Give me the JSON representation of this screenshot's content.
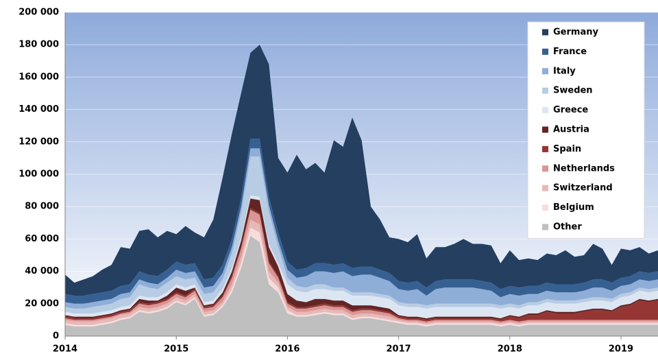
{
  "chart_data": {
    "type": "stacked_area",
    "x": [
      2014,
      2014.083,
      2014.167,
      2014.25,
      2014.333,
      2014.417,
      2014.5,
      2014.583,
      2014.667,
      2014.75,
      2014.833,
      2014.917,
      2015,
      2015.083,
      2015.167,
      2015.25,
      2015.333,
      2015.417,
      2015.5,
      2015.583,
      2015.667,
      2015.75,
      2015.833,
      2015.917,
      2016,
      2016.083,
      2016.167,
      2016.25,
      2016.333,
      2016.417,
      2016.5,
      2016.583,
      2016.667,
      2016.75,
      2016.833,
      2016.917,
      2017,
      2017.083,
      2017.167,
      2017.25,
      2017.333,
      2017.417,
      2017.5,
      2017.583,
      2017.667,
      2017.75,
      2017.833,
      2017.917,
      2018,
      2018.083,
      2018.167,
      2018.25,
      2018.333,
      2018.417,
      2018.5,
      2018.583,
      2018.667,
      2018.75,
      2018.833,
      2018.917,
      2019,
      2019.083,
      2019.167,
      2019.25,
      2019.333
    ],
    "xlim": [
      2014,
      2019.333
    ],
    "xticks": [
      2014,
      2015,
      2016,
      2017,
      2018,
      2019
    ],
    "ylim": [
      0,
      200000
    ],
    "yticks": [
      0,
      {
        "value": 20000,
        "label": "20 000"
      },
      {
        "value": 40000,
        "label": "40 000"
      },
      {
        "value": 60000,
        "label": "60 000"
      },
      {
        "value": 80000,
        "label": "80 000"
      },
      {
        "value": 100000,
        "label": "100 000"
      },
      {
        "value": 120000,
        "label": "120 000"
      },
      {
        "value": 140000,
        "label": "140 000"
      },
      {
        "value": 160000,
        "label": "160 000"
      },
      {
        "value": 180000,
        "label": "180 000"
      },
      {
        "value": 200000,
        "label": "200 000"
      }
    ],
    "grid": true,
    "legend": "upper right",
    "series": [
      {
        "name": "Germany",
        "color": "#243f60",
        "values": [
          12000,
          8000,
          10000,
          11000,
          14000,
          16000,
          24000,
          22000,
          25000,
          28000,
          24000,
          24000,
          17000,
          24000,
          19000,
          26000,
          36000,
          54000,
          65000,
          65000,
          53000,
          58000,
          82000,
          46000,
          55000,
          71000,
          61000,
          62000,
          56000,
          77000,
          72000,
          93000,
          78000,
          37000,
          31000,
          22000,
          26000,
          25000,
          29000,
          18000,
          21000,
          20000,
          22000,
          25000,
          22000,
          23000,
          23000,
          16000,
          22000,
          17000,
          17000,
          16000,
          18000,
          18000,
          21000,
          17000,
          17000,
          22000,
          19000,
          11000,
          18000,
          16000,
          15000,
          12000,
          13000
        ]
      },
      {
        "name": "France",
        "color": "#366092",
        "values": [
          5000,
          5000,
          5000,
          5000,
          5000,
          5000,
          5000,
          5000,
          5000,
          5000,
          5000,
          5000,
          5000,
          5000,
          5000,
          5000,
          5000,
          5000,
          5000,
          5000,
          6000,
          6000,
          5000,
          5000,
          5000,
          5000,
          5000,
          5000,
          5000,
          5000,
          5000,
          5000,
          5000,
          5000,
          5000,
          5000,
          5000,
          5000,
          5000,
          5000,
          5000,
          5000,
          5000,
          5000,
          5000,
          5000,
          5000,
          5000,
          5000,
          5000,
          5000,
          5000,
          5000,
          5000,
          5000,
          5000,
          5000,
          5000,
          5000,
          5000,
          5000,
          5000,
          5000,
          5000,
          5000
        ]
      },
      {
        "name": "Italy",
        "color": "#8eaed8",
        "values": [
          3000,
          3000,
          3000,
          3000,
          3000,
          3000,
          3000,
          3000,
          3000,
          3000,
          3000,
          3000,
          4000,
          4000,
          4000,
          4000,
          4000,
          4000,
          4000,
          4000,
          5000,
          5000,
          4000,
          4000,
          5000,
          5000,
          7000,
          8000,
          8000,
          9000,
          10000,
          10000,
          11000,
          11000,
          10000,
          9000,
          8000,
          8000,
          9000,
          6000,
          9000,
          10000,
          10000,
          10000,
          10000,
          9000,
          8000,
          5000,
          6000,
          6000,
          5000,
          5000,
          5000,
          5000,
          5000,
          5000,
          5000,
          6000,
          6000,
          5000,
          5000,
          5000,
          5000,
          5000,
          5000
        ]
      },
      {
        "name": "Sweden",
        "color": "#b8cce4",
        "values": [
          3000,
          3000,
          3000,
          4000,
          4000,
          4000,
          5000,
          5000,
          7000,
          6000,
          5000,
          6000,
          5000,
          5000,
          4000,
          5000,
          5000,
          6000,
          9000,
          15000,
          24000,
          25000,
          20000,
          10000,
          4000,
          3000,
          3000,
          3000,
          3000,
          2000,
          2000,
          2000,
          2000,
          2000,
          2000,
          2000,
          2000,
          2000,
          2000,
          2000,
          2000,
          2000,
          2000,
          2000,
          2000,
          2000,
          2000,
          2000,
          2000,
          2000,
          2000,
          2000,
          2000,
          2000,
          2000,
          2000,
          2000,
          2000,
          2000,
          2000,
          2000,
          2000,
          2000,
          2000,
          2000
        ]
      },
      {
        "name": "Greece",
        "color": "#dce6f2",
        "values": [
          2000,
          2000,
          2000,
          2000,
          2000,
          2000,
          2000,
          2000,
          2000,
          2000,
          2000,
          2000,
          2000,
          2000,
          2000,
          2000,
          2000,
          2000,
          2000,
          2000,
          2000,
          2000,
          2000,
          2000,
          6000,
          6000,
          6000,
          6000,
          6000,
          6000,
          6000,
          6000,
          6000,
          6000,
          6000,
          6000,
          6000,
          6000,
          6000,
          6000,
          6000,
          6000,
          6000,
          6000,
          6000,
          6000,
          6000,
          6000,
          5000,
          5000,
          5000,
          5000,
          5000,
          5000,
          5000,
          5000,
          5000,
          5000,
          5000,
          5000,
          5000,
          5000,
          5000,
          5000,
          5000
        ]
      },
      {
        "name": "Austria",
        "color": "#632523",
        "values": [
          1000,
          1000,
          1000,
          1000,
          1000,
          1000,
          1000,
          1000,
          2000,
          2000,
          1000,
          2000,
          3000,
          3000,
          1000,
          1000,
          1000,
          2000,
          3000,
          4000,
          6000,
          8000,
          9000,
          6000,
          5000,
          4000,
          3000,
          4000,
          3000,
          3000,
          3000,
          3000,
          2000,
          2000,
          2000,
          2000,
          1000,
          1000,
          1000,
          1000,
          1000,
          1000,
          1000,
          1000,
          1000,
          1000,
          1000,
          1000,
          1000,
          1000,
          1000,
          1000,
          1000,
          1000,
          1000,
          1000,
          1000,
          1000,
          1000,
          1000,
          1000,
          1000,
          1000,
          1000,
          1000
        ]
      },
      {
        "name": "Spain",
        "color": "#963634",
        "values": [
          1000,
          1000,
          1000,
          1000,
          1000,
          1000,
          1000,
          1000,
          1000,
          1000,
          1000,
          1000,
          1000,
          1000,
          1000,
          1000,
          1000,
          1000,
          1000,
          1000,
          1000,
          1000,
          1000,
          1000,
          1000,
          1000,
          1000,
          1000,
          1000,
          1000,
          1000,
          1000,
          1000,
          1000,
          1000,
          1000,
          1000,
          1000,
          1000,
          1000,
          1000,
          1000,
          1000,
          1000,
          1000,
          1000,
          1000,
          1000,
          2000,
          2000,
          3000,
          3000,
          5000,
          4000,
          4000,
          4000,
          5000,
          6000,
          6000,
          5000,
          8000,
          9000,
          12000,
          11000,
          12000
        ]
      },
      {
        "name": "Netherlands",
        "color": "#da9694",
        "values": [
          1000,
          1000,
          1000,
          1000,
          1000,
          1000,
          1000,
          1000,
          2000,
          2000,
          2000,
          2000,
          2000,
          2000,
          2000,
          2000,
          2000,
          3000,
          4000,
          5000,
          6000,
          6000,
          5000,
          3000,
          2000,
          2000,
          2000,
          2000,
          2000,
          2000,
          2000,
          2000,
          2000,
          2000,
          2000,
          2000,
          1000,
          1000,
          1000,
          1000,
          1000,
          1000,
          1000,
          1000,
          1000,
          1000,
          1000,
          1000,
          1000,
          1000,
          1000,
          1000,
          1000,
          1000,
          1000,
          1000,
          1000,
          1000,
          1000,
          1000,
          1000,
          1000,
          1000,
          1000,
          1000
        ]
      },
      {
        "name": "Switzerland",
        "color": "#e6b9b8",
        "values": [
          2000,
          2000,
          2000,
          2000,
          2000,
          2000,
          2000,
          2000,
          2000,
          2000,
          2000,
          2000,
          2000,
          2000,
          2000,
          2000,
          2000,
          2000,
          3000,
          4000,
          5000,
          5000,
          4000,
          3000,
          2000,
          2000,
          2000,
          2000,
          2000,
          2000,
          2000,
          2000,
          2000,
          2000,
          2000,
          2000,
          1000,
          1000,
          1000,
          1000,
          1000,
          1000,
          1000,
          1000,
          1000,
          1000,
          1000,
          1000,
          1000,
          1000,
          1000,
          1000,
          1000,
          1000,
          1000,
          1000,
          1000,
          1000,
          1000,
          1000,
          1000,
          1000,
          1000,
          1000,
          1000
        ]
      },
      {
        "name": "Belgium",
        "color": "#f8dcdc",
        "values": [
          1000,
          1000,
          1000,
          1000,
          1000,
          1000,
          1000,
          1000,
          1000,
          1000,
          1000,
          1000,
          1000,
          1000,
          1000,
          1000,
          1000,
          1000,
          2000,
          3000,
          5000,
          6000,
          4000,
          3000,
          2000,
          1000,
          1000,
          1000,
          1000,
          1000,
          1000,
          1000,
          1000,
          1000,
          1000,
          1000,
          1000,
          1000,
          1000,
          1000,
          1000,
          1000,
          1000,
          1000,
          1000,
          1000,
          1000,
          1000,
          1000,
          1000,
          1000,
          1000,
          1000,
          1000,
          1000,
          1000,
          1000,
          1000,
          1000,
          1000,
          1000,
          1000,
          1000,
          1000,
          1000
        ]
      },
      {
        "name": "Other",
        "color": "#bfbfbf",
        "values": [
          7000,
          6000,
          6000,
          6000,
          7000,
          8000,
          10000,
          11000,
          15000,
          14000,
          15000,
          17000,
          21000,
          19000,
          23000,
          12000,
          13000,
          18000,
          27000,
          42000,
          62000,
          58000,
          32000,
          27000,
          14000,
          12000,
          12000,
          13000,
          14000,
          13000,
          13000,
          10000,
          11000,
          11000,
          10000,
          9000,
          8000,
          7000,
          7000,
          6000,
          7000,
          7000,
          7000,
          7000,
          7000,
          7000,
          7000,
          6000,
          7000,
          6000,
          7000,
          7000,
          7000,
          7000,
          7000,
          7000,
          7000,
          7000,
          7000,
          7000,
          7000,
          7000,
          7000,
          7000,
          7000
        ]
      }
    ]
  }
}
